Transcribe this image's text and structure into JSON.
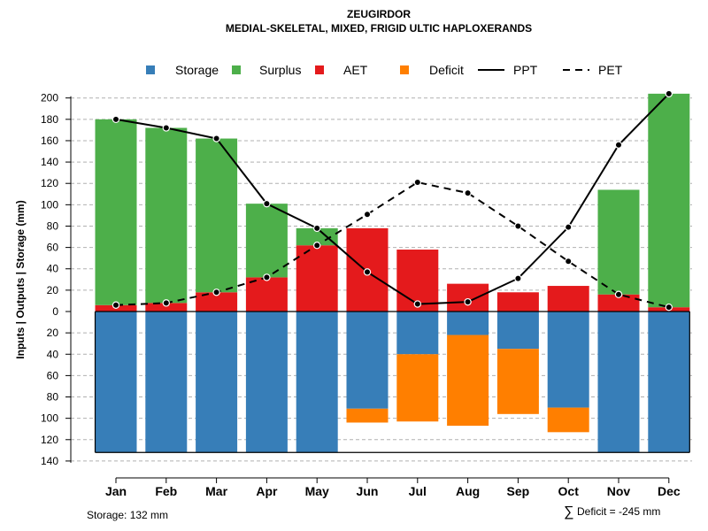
{
  "chart_data": {
    "type": "bar",
    "title": "ZEUGIRDOR",
    "subtitle": "MEDIAL-SKELETAL, MIXED, FRIGID ULTIC HAPLOXERANDS",
    "ylabel": "Inputs | Outputs | Storage    (mm)",
    "categories": [
      "Jan",
      "Feb",
      "Mar",
      "Apr",
      "May",
      "Jun",
      "Jul",
      "Aug",
      "Sep",
      "Oct",
      "Nov",
      "Dec"
    ],
    "ylim_positive": [
      0,
      200
    ],
    "ylim_negative": [
      0,
      140
    ],
    "y_ticks_positive": [
      "0",
      "20",
      "40",
      "60",
      "80",
      "100",
      "120",
      "140",
      "160",
      "180",
      "200"
    ],
    "y_ticks_negative": [
      "20",
      "40",
      "60",
      "80",
      "100",
      "120",
      "140"
    ],
    "grid": true,
    "legend_placement": "top",
    "legend": [
      "Storage",
      "Surplus",
      "AET",
      "Deficit",
      "PPT",
      "PET"
    ],
    "series": [
      {
        "name": "AET",
        "color": "#E41A1C",
        "values": [
          6,
          8,
          18,
          32,
          62,
          78,
          58,
          26,
          18,
          24,
          16,
          4
        ]
      },
      {
        "name": "Surplus",
        "color": "#4DAF4A",
        "values": [
          174,
          164,
          144,
          69,
          16,
          0,
          0,
          0,
          0,
          0,
          98,
          200
        ]
      },
      {
        "name": "Storage",
        "color": "#377EB8",
        "values": [
          132,
          132,
          132,
          132,
          132,
          91,
          40,
          22,
          35,
          90,
          132,
          132
        ]
      },
      {
        "name": "Deficit",
        "color": "#FF7F00",
        "values": [
          0,
          0,
          0,
          0,
          0,
          13,
          63,
          85,
          61,
          23,
          0,
          0
        ]
      },
      {
        "name": "PPT",
        "color": "#000000",
        "style": "solid",
        "values": [
          180,
          172,
          162,
          101,
          78,
          37,
          7,
          9,
          31,
          79,
          156,
          204
        ]
      },
      {
        "name": "PET",
        "color": "#000000",
        "style": "dashed",
        "values": [
          6,
          8,
          18,
          32,
          62,
          91,
          121,
          111,
          80,
          47,
          16,
          4
        ]
      }
    ],
    "annotations": {
      "storage": "Storage: 132 mm",
      "deficit_symbol": "∑",
      "deficit": "Deficit = -245 mm"
    }
  }
}
